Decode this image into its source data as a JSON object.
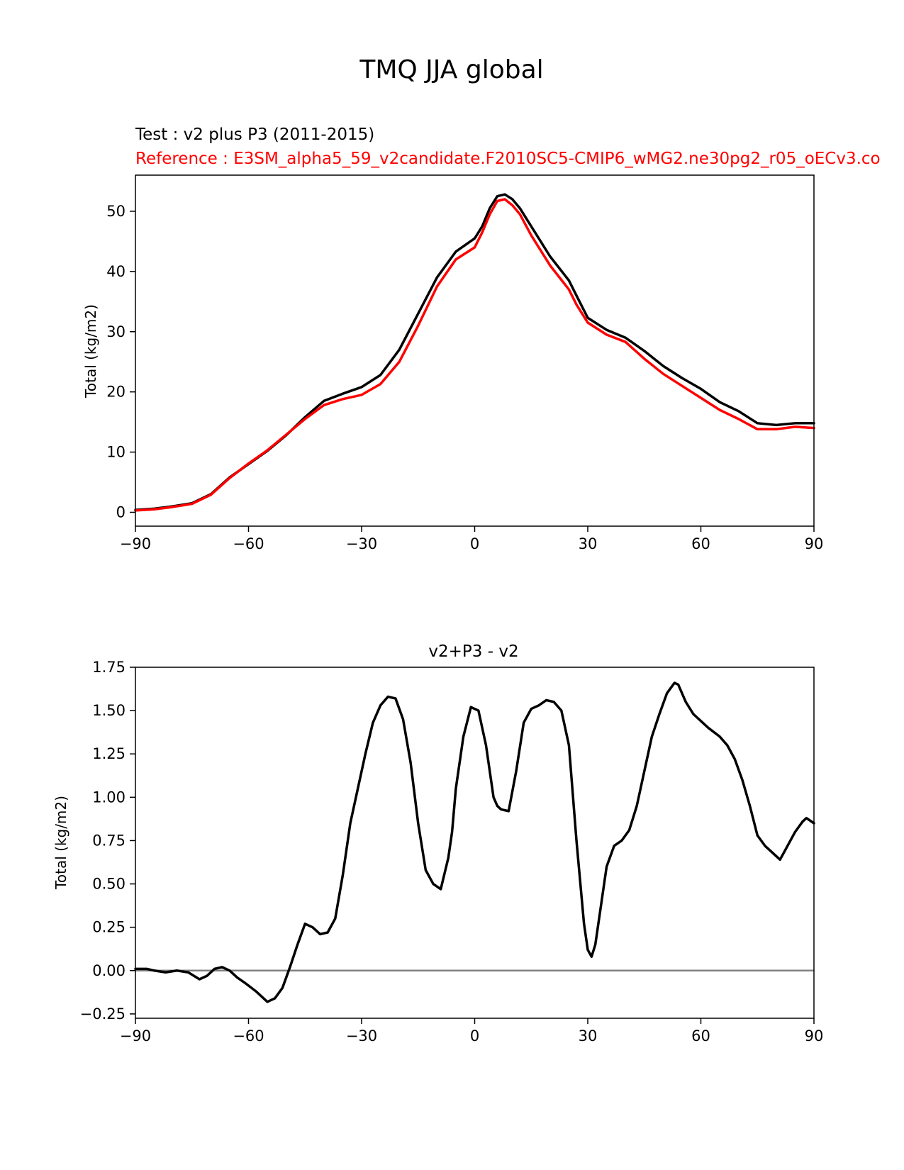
{
  "figure": {
    "suptitle": "TMQ JJA global"
  },
  "chart_data": [
    {
      "type": "line",
      "test_label": "Test : v2 plus P3 (2011-2015)",
      "reference_label": "Reference : E3SM_alpha5_59_v2candidate.F2010SC5-CMIP6_wMG2.ne30pg2_r05_oECv3.co",
      "xlabel": "",
      "ylabel": "Total (kg/m2)",
      "xlim": [
        -90,
        90
      ],
      "ylim": [
        -2.3,
        56
      ],
      "xticks": [
        -90,
        -60,
        -30,
        0,
        30,
        60,
        90
      ],
      "xtick_labels": [
        "−90",
        "−60",
        "−30",
        "0",
        "30",
        "60",
        "90"
      ],
      "yticks": [
        0,
        10,
        20,
        30,
        40,
        50
      ],
      "ytick_labels": [
        "0",
        "10",
        "20",
        "30",
        "40",
        "50"
      ],
      "x": [
        -90,
        -85,
        -80,
        -75,
        -70,
        -65,
        -60,
        -55,
        -50,
        -45,
        -40,
        -35,
        -30,
        -25,
        -20,
        -15,
        -10,
        -5,
        0,
        2,
        4,
        6,
        8,
        10,
        12,
        15,
        20,
        25,
        27,
        30,
        35,
        40,
        45,
        50,
        55,
        60,
        65,
        70,
        75,
        80,
        85,
        90
      ],
      "series": [
        {
          "name": "test",
          "color": "#000000",
          "values": [
            0.4,
            0.6,
            1.0,
            1.5,
            3.0,
            5.8,
            8.0,
            10.2,
            12.8,
            15.8,
            18.5,
            19.7,
            20.8,
            22.8,
            27.0,
            33.0,
            39.0,
            43.3,
            45.5,
            47.5,
            50.5,
            52.5,
            52.8,
            52.0,
            50.5,
            47.5,
            42.5,
            38.5,
            36.0,
            32.3,
            30.3,
            29.0,
            26.8,
            24.3,
            22.3,
            20.5,
            18.3,
            16.8,
            14.8,
            14.5,
            14.8,
            14.8
          ]
        },
        {
          "name": "reference",
          "color": "#ff0000",
          "values": [
            0.3,
            0.5,
            0.9,
            1.4,
            2.9,
            5.7,
            8.1,
            10.3,
            12.9,
            15.5,
            17.8,
            18.8,
            19.5,
            21.3,
            25.0,
            31.0,
            37.5,
            42.0,
            44.0,
            46.5,
            49.5,
            51.7,
            52.0,
            51.0,
            49.5,
            46.0,
            41.0,
            37.0,
            34.5,
            31.5,
            29.5,
            28.3,
            25.5,
            23.0,
            21.0,
            19.0,
            17.0,
            15.5,
            13.8,
            13.8,
            14.2,
            14.0
          ]
        }
      ]
    },
    {
      "type": "line",
      "title": "v2+P3 - v2",
      "xlabel": "",
      "ylabel": "Total (kg/m2)",
      "xlim": [
        -90,
        90
      ],
      "ylim": [
        -0.275,
        1.75
      ],
      "xticks": [
        -90,
        -60,
        -30,
        0,
        30,
        60,
        90
      ],
      "xtick_labels": [
        "−90",
        "−60",
        "−30",
        "0",
        "30",
        "60",
        "90"
      ],
      "yticks": [
        -0.25,
        0.0,
        0.25,
        0.5,
        0.75,
        1.0,
        1.25,
        1.5,
        1.75
      ],
      "ytick_labels": [
        "−0.25",
        "0.00",
        "0.25",
        "0.50",
        "0.75",
        "1.00",
        "1.25",
        "1.50",
        "1.75"
      ],
      "zero_line_color": "#808080",
      "x": [
        -90,
        -87,
        -85,
        -82,
        -79,
        -76,
        -73,
        -71,
        -69,
        -67,
        -65,
        -63,
        -61,
        -58,
        -55,
        -53,
        -51,
        -49,
        -47,
        -45,
        -43,
        -41,
        -39,
        -37,
        -35,
        -33,
        -31,
        -29,
        -27,
        -25,
        -23,
        -21,
        -19,
        -17,
        -15,
        -13,
        -11,
        -9,
        -7,
        -6,
        -5,
        -3,
        -1,
        0,
        1,
        3,
        5,
        6,
        7,
        9,
        11,
        13,
        15,
        16,
        17,
        19,
        21,
        23,
        25,
        27,
        29,
        30,
        31,
        32,
        33,
        34,
        35,
        37,
        39,
        41,
        43,
        45,
        47,
        49,
        51,
        53,
        54,
        55,
        56,
        58,
        60,
        62,
        65,
        67,
        69,
        71,
        73,
        75,
        77,
        79,
        80,
        81,
        83,
        85,
        87,
        88,
        90
      ],
      "series": [
        {
          "name": "difference",
          "color": "#000000",
          "values": [
            0.01,
            0.01,
            0.0,
            -0.01,
            0.0,
            -0.01,
            -0.05,
            -0.03,
            0.01,
            0.02,
            0.0,
            -0.04,
            -0.07,
            -0.12,
            -0.18,
            -0.16,
            -0.1,
            0.02,
            0.15,
            0.27,
            0.25,
            0.21,
            0.22,
            0.3,
            0.55,
            0.85,
            1.05,
            1.25,
            1.43,
            1.53,
            1.58,
            1.57,
            1.45,
            1.2,
            0.85,
            0.58,
            0.5,
            0.47,
            0.65,
            0.8,
            1.05,
            1.35,
            1.52,
            1.51,
            1.5,
            1.3,
            1.0,
            0.95,
            0.93,
            0.92,
            1.15,
            1.43,
            1.51,
            1.52,
            1.53,
            1.56,
            1.55,
            1.5,
            1.3,
            0.75,
            0.27,
            0.12,
            0.08,
            0.15,
            0.3,
            0.45,
            0.6,
            0.72,
            0.75,
            0.81,
            0.95,
            1.15,
            1.35,
            1.48,
            1.6,
            1.66,
            1.65,
            1.6,
            1.55,
            1.48,
            1.44,
            1.4,
            1.35,
            1.3,
            1.22,
            1.1,
            0.95,
            0.78,
            0.72,
            0.68,
            0.66,
            0.64,
            0.72,
            0.8,
            0.86,
            0.88,
            0.85
          ]
        }
      ]
    }
  ]
}
